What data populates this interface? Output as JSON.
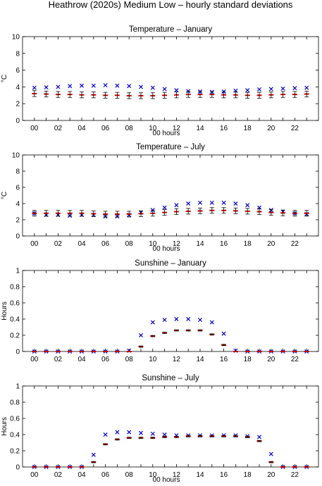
{
  "figure_title": "Heathrow (2020s) Medium Low – hourly standard deviations",
  "chart_data": [
    {
      "type": "scatter",
      "title": "Temperature – January",
      "xlabel": "00 hours",
      "ylabel": "°C",
      "xlim": [
        -1,
        24
      ],
      "ylim": [
        0,
        10
      ],
      "xticks": [
        "00",
        "02",
        "04",
        "06",
        "08",
        "10",
        "12",
        "14",
        "16",
        "18",
        "20",
        "22"
      ],
      "yticks": [
        "0",
        "2",
        "4",
        "6",
        "8",
        "10"
      ],
      "x": [
        0,
        1,
        2,
        3,
        4,
        5,
        6,
        7,
        8,
        9,
        10,
        11,
        12,
        13,
        14,
        15,
        16,
        17,
        18,
        19,
        20,
        21,
        22,
        23
      ],
      "series": [
        {
          "color": "#0000cc",
          "marker": "x",
          "values": [
            3.9,
            3.95,
            4.0,
            4.1,
            4.15,
            4.15,
            4.2,
            4.15,
            4.1,
            4.0,
            3.9,
            3.75,
            3.6,
            3.5,
            3.45,
            3.4,
            3.45,
            3.55,
            3.6,
            3.7,
            3.75,
            3.8,
            3.85,
            3.9
          ]
        },
        {
          "color": "#cc0000",
          "marker": "bar",
          "values": [
            3.2,
            3.15,
            3.1,
            3.1,
            3.05,
            3.05,
            3.0,
            3.0,
            2.95,
            2.95,
            2.95,
            3.0,
            3.05,
            3.1,
            3.1,
            3.1,
            3.05,
            3.05,
            3.0,
            3.0,
            3.05,
            3.1,
            3.1,
            3.15
          ],
          "error": [
            0.35,
            0.35,
            0.35,
            0.35,
            0.35,
            0.35,
            0.35,
            0.35,
            0.35,
            0.35,
            0.35,
            0.35,
            0.35,
            0.35,
            0.35,
            0.35,
            0.35,
            0.35,
            0.35,
            0.35,
            0.35,
            0.35,
            0.35,
            0.35
          ]
        }
      ]
    },
    {
      "type": "scatter",
      "title": "Temperature – July",
      "xlabel": "00 hours",
      "ylabel": "°C",
      "xlim": [
        -1,
        24
      ],
      "ylim": [
        0,
        10
      ],
      "xticks": [
        "00",
        "02",
        "04",
        "06",
        "08",
        "10",
        "12",
        "14",
        "16",
        "18",
        "20",
        "22"
      ],
      "yticks": [
        "0",
        "2",
        "4",
        "6",
        "8",
        "10"
      ],
      "x": [
        0,
        1,
        2,
        3,
        4,
        5,
        6,
        7,
        8,
        9,
        10,
        11,
        12,
        13,
        14,
        15,
        16,
        17,
        18,
        19,
        20,
        21,
        22,
        23
      ],
      "series": [
        {
          "color": "#0000cc",
          "marker": "x",
          "values": [
            2.8,
            2.6,
            2.6,
            2.5,
            2.6,
            2.6,
            2.4,
            2.4,
            2.6,
            2.9,
            3.2,
            3.5,
            3.8,
            4.0,
            4.1,
            4.1,
            4.1,
            4.0,
            3.8,
            3.5,
            3.2,
            3.0,
            2.8,
            2.7
          ]
        },
        {
          "color": "#cc0000",
          "marker": "bar",
          "values": [
            2.8,
            2.8,
            2.8,
            2.8,
            2.8,
            2.75,
            2.7,
            2.7,
            2.7,
            2.75,
            2.8,
            2.9,
            3.0,
            3.05,
            3.1,
            3.15,
            3.15,
            3.1,
            3.05,
            3.0,
            2.9,
            2.85,
            2.8,
            2.8
          ],
          "error": [
            0.35,
            0.35,
            0.35,
            0.35,
            0.35,
            0.35,
            0.35,
            0.35,
            0.35,
            0.35,
            0.35,
            0.35,
            0.35,
            0.35,
            0.35,
            0.35,
            0.35,
            0.35,
            0.35,
            0.35,
            0.35,
            0.35,
            0.35,
            0.35
          ]
        }
      ]
    },
    {
      "type": "scatter",
      "title": "Sunshine – January",
      "xlabel": "",
      "ylabel": "Hours",
      "xlim": [
        -1,
        24
      ],
      "ylim": [
        0,
        1
      ],
      "xticks": [
        "00",
        "02",
        "04",
        "06",
        "08",
        "10",
        "12",
        "14",
        "16",
        "18",
        "20",
        "22"
      ],
      "yticks": [
        "0",
        "0.2",
        "0.4",
        "0.6",
        "0.8",
        "1"
      ],
      "x": [
        0,
        1,
        2,
        3,
        4,
        5,
        6,
        7,
        8,
        9,
        10,
        11,
        12,
        13,
        14,
        15,
        16,
        17,
        18,
        19,
        20,
        21,
        22,
        23
      ],
      "series": [
        {
          "color": "#0000cc",
          "marker": "x",
          "values": [
            0,
            0,
            0,
            0,
            0,
            0,
            0,
            0,
            0.01,
            0.2,
            0.36,
            0.39,
            0.4,
            0.4,
            0.39,
            0.36,
            0.22,
            0.01,
            0,
            0,
            0,
            0,
            0,
            0
          ]
        },
        {
          "color": "#cc0000",
          "marker": "bar",
          "values": [
            0,
            0,
            0,
            0,
            0,
            0,
            0,
            0,
            0,
            0.06,
            0.19,
            0.23,
            0.26,
            0.26,
            0.26,
            0.21,
            0.08,
            0,
            0,
            0,
            0,
            0,
            0,
            0
          ],
          "error": [
            0,
            0,
            0,
            0,
            0,
            0,
            0,
            0,
            0,
            0.008,
            0.008,
            0.008,
            0.008,
            0.008,
            0.008,
            0.008,
            0.008,
            0,
            0,
            0,
            0,
            0,
            0,
            0
          ]
        }
      ]
    },
    {
      "type": "scatter",
      "title": "Sunshine – July",
      "xlabel": "00 hours",
      "ylabel": "Hours",
      "xlim": [
        -1,
        24
      ],
      "ylim": [
        0,
        1
      ],
      "xticks": [
        "00",
        "02",
        "04",
        "06",
        "08",
        "10",
        "12",
        "14",
        "16",
        "18",
        "20",
        "22"
      ],
      "yticks": [
        "0",
        "0.2",
        "0.4",
        "0.6",
        "0.8",
        "1"
      ],
      "x": [
        0,
        1,
        2,
        3,
        4,
        5,
        6,
        7,
        8,
        9,
        10,
        11,
        12,
        13,
        14,
        15,
        16,
        17,
        18,
        19,
        20,
        21,
        22,
        23
      ],
      "series": [
        {
          "color": "#0000cc",
          "marker": "x",
          "values": [
            0,
            0,
            0,
            0,
            0,
            0.15,
            0.4,
            0.43,
            0.43,
            0.42,
            0.41,
            0.4,
            0.39,
            0.39,
            0.39,
            0.39,
            0.39,
            0.39,
            0.38,
            0.37,
            0.16,
            0,
            0,
            0
          ]
        },
        {
          "color": "#cc0000",
          "marker": "bar",
          "values": [
            0,
            0,
            0,
            0,
            0,
            0.06,
            0.28,
            0.34,
            0.36,
            0.36,
            0.36,
            0.37,
            0.37,
            0.38,
            0.38,
            0.38,
            0.38,
            0.38,
            0.37,
            0.32,
            0.06,
            0,
            0,
            0
          ],
          "error": [
            0,
            0,
            0,
            0,
            0,
            0.008,
            0.008,
            0.008,
            0.008,
            0.008,
            0.008,
            0.008,
            0.008,
            0.008,
            0.008,
            0.008,
            0.008,
            0.008,
            0.008,
            0.008,
            0.008,
            0,
            0,
            0
          ]
        }
      ]
    }
  ]
}
